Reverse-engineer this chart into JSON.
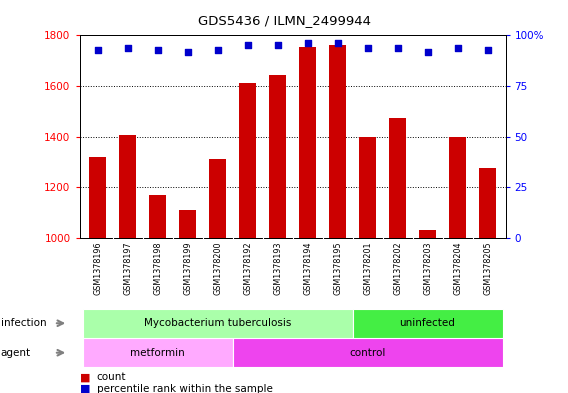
{
  "title": "GDS5436 / ILMN_2499944",
  "samples": [
    "GSM1378196",
    "GSM1378197",
    "GSM1378198",
    "GSM1378199",
    "GSM1378200",
    "GSM1378192",
    "GSM1378193",
    "GSM1378194",
    "GSM1378195",
    "GSM1378201",
    "GSM1378202",
    "GSM1378203",
    "GSM1378204",
    "GSM1378205"
  ],
  "counts": [
    1320,
    1405,
    1170,
    1110,
    1310,
    1610,
    1645,
    1755,
    1760,
    1400,
    1475,
    1030,
    1400,
    1275
  ],
  "percentile_ranks": [
    93,
    94,
    93,
    92,
    93,
    95,
    95,
    96,
    96,
    94,
    94,
    92,
    94,
    93
  ],
  "ylim_left": [
    1000,
    1800
  ],
  "ylim_right": [
    0,
    100
  ],
  "yticks_left": [
    1000,
    1200,
    1400,
    1600,
    1800
  ],
  "yticks_right": [
    0,
    25,
    50,
    75,
    100
  ],
  "bar_color": "#cc0000",
  "dot_color": "#0000cc",
  "infection_groups": [
    {
      "label": "Mycobacterium tuberculosis",
      "start": 0,
      "end": 9,
      "color": "#aaffaa"
    },
    {
      "label": "uninfected",
      "start": 9,
      "end": 14,
      "color": "#44ee44"
    }
  ],
  "agent_groups": [
    {
      "label": "metformin",
      "start": 0,
      "end": 5,
      "color": "#ffaaff"
    },
    {
      "label": "control",
      "start": 5,
      "end": 14,
      "color": "#ee44ee"
    }
  ],
  "infection_label": "infection",
  "agent_label": "agent",
  "legend_count_label": "count",
  "legend_percentile_label": "percentile rank within the sample",
  "background_color": "#ffffff",
  "tick_area_color": "#c8c8c8",
  "spine_color": "#000000"
}
